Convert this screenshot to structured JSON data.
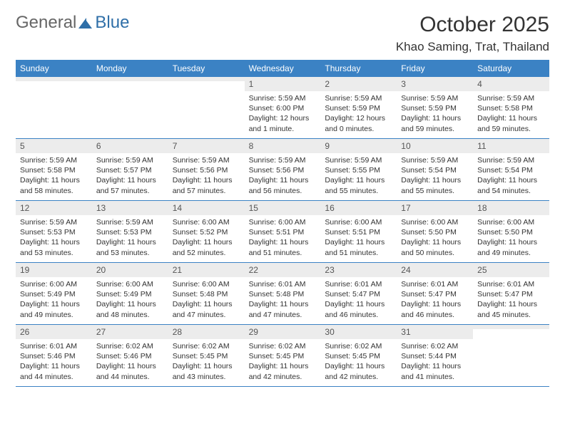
{
  "logo": {
    "general": "General",
    "blue": "Blue"
  },
  "title": "October 2025",
  "location": "Khao Saming, Trat, Thailand",
  "day_names": [
    "Sunday",
    "Monday",
    "Tuesday",
    "Wednesday",
    "Thursday",
    "Friday",
    "Saturday"
  ],
  "colors": {
    "header_bg": "#3b82c4",
    "header_text": "#ffffff",
    "daynum_bg": "#ececec",
    "border": "#3b82c4",
    "logo_blue": "#2f6fa8",
    "logo_gray": "#666666"
  },
  "grid": [
    [
      {
        "n": "",
        "sr": "",
        "ss": "",
        "dl": ""
      },
      {
        "n": "",
        "sr": "",
        "ss": "",
        "dl": ""
      },
      {
        "n": "",
        "sr": "",
        "ss": "",
        "dl": ""
      },
      {
        "n": "1",
        "sr": "Sunrise: 5:59 AM",
        "ss": "Sunset: 6:00 PM",
        "dl": "Daylight: 12 hours and 1 minute."
      },
      {
        "n": "2",
        "sr": "Sunrise: 5:59 AM",
        "ss": "Sunset: 5:59 PM",
        "dl": "Daylight: 12 hours and 0 minutes."
      },
      {
        "n": "3",
        "sr": "Sunrise: 5:59 AM",
        "ss": "Sunset: 5:59 PM",
        "dl": "Daylight: 11 hours and 59 minutes."
      },
      {
        "n": "4",
        "sr": "Sunrise: 5:59 AM",
        "ss": "Sunset: 5:58 PM",
        "dl": "Daylight: 11 hours and 59 minutes."
      }
    ],
    [
      {
        "n": "5",
        "sr": "Sunrise: 5:59 AM",
        "ss": "Sunset: 5:58 PM",
        "dl": "Daylight: 11 hours and 58 minutes."
      },
      {
        "n": "6",
        "sr": "Sunrise: 5:59 AM",
        "ss": "Sunset: 5:57 PM",
        "dl": "Daylight: 11 hours and 57 minutes."
      },
      {
        "n": "7",
        "sr": "Sunrise: 5:59 AM",
        "ss": "Sunset: 5:56 PM",
        "dl": "Daylight: 11 hours and 57 minutes."
      },
      {
        "n": "8",
        "sr": "Sunrise: 5:59 AM",
        "ss": "Sunset: 5:56 PM",
        "dl": "Daylight: 11 hours and 56 minutes."
      },
      {
        "n": "9",
        "sr": "Sunrise: 5:59 AM",
        "ss": "Sunset: 5:55 PM",
        "dl": "Daylight: 11 hours and 55 minutes."
      },
      {
        "n": "10",
        "sr": "Sunrise: 5:59 AM",
        "ss": "Sunset: 5:54 PM",
        "dl": "Daylight: 11 hours and 55 minutes."
      },
      {
        "n": "11",
        "sr": "Sunrise: 5:59 AM",
        "ss": "Sunset: 5:54 PM",
        "dl": "Daylight: 11 hours and 54 minutes."
      }
    ],
    [
      {
        "n": "12",
        "sr": "Sunrise: 5:59 AM",
        "ss": "Sunset: 5:53 PM",
        "dl": "Daylight: 11 hours and 53 minutes."
      },
      {
        "n": "13",
        "sr": "Sunrise: 5:59 AM",
        "ss": "Sunset: 5:53 PM",
        "dl": "Daylight: 11 hours and 53 minutes."
      },
      {
        "n": "14",
        "sr": "Sunrise: 6:00 AM",
        "ss": "Sunset: 5:52 PM",
        "dl": "Daylight: 11 hours and 52 minutes."
      },
      {
        "n": "15",
        "sr": "Sunrise: 6:00 AM",
        "ss": "Sunset: 5:51 PM",
        "dl": "Daylight: 11 hours and 51 minutes."
      },
      {
        "n": "16",
        "sr": "Sunrise: 6:00 AM",
        "ss": "Sunset: 5:51 PM",
        "dl": "Daylight: 11 hours and 51 minutes."
      },
      {
        "n": "17",
        "sr": "Sunrise: 6:00 AM",
        "ss": "Sunset: 5:50 PM",
        "dl": "Daylight: 11 hours and 50 minutes."
      },
      {
        "n": "18",
        "sr": "Sunrise: 6:00 AM",
        "ss": "Sunset: 5:50 PM",
        "dl": "Daylight: 11 hours and 49 minutes."
      }
    ],
    [
      {
        "n": "19",
        "sr": "Sunrise: 6:00 AM",
        "ss": "Sunset: 5:49 PM",
        "dl": "Daylight: 11 hours and 49 minutes."
      },
      {
        "n": "20",
        "sr": "Sunrise: 6:00 AM",
        "ss": "Sunset: 5:49 PM",
        "dl": "Daylight: 11 hours and 48 minutes."
      },
      {
        "n": "21",
        "sr": "Sunrise: 6:00 AM",
        "ss": "Sunset: 5:48 PM",
        "dl": "Daylight: 11 hours and 47 minutes."
      },
      {
        "n": "22",
        "sr": "Sunrise: 6:01 AM",
        "ss": "Sunset: 5:48 PM",
        "dl": "Daylight: 11 hours and 47 minutes."
      },
      {
        "n": "23",
        "sr": "Sunrise: 6:01 AM",
        "ss": "Sunset: 5:47 PM",
        "dl": "Daylight: 11 hours and 46 minutes."
      },
      {
        "n": "24",
        "sr": "Sunrise: 6:01 AM",
        "ss": "Sunset: 5:47 PM",
        "dl": "Daylight: 11 hours and 46 minutes."
      },
      {
        "n": "25",
        "sr": "Sunrise: 6:01 AM",
        "ss": "Sunset: 5:47 PM",
        "dl": "Daylight: 11 hours and 45 minutes."
      }
    ],
    [
      {
        "n": "26",
        "sr": "Sunrise: 6:01 AM",
        "ss": "Sunset: 5:46 PM",
        "dl": "Daylight: 11 hours and 44 minutes."
      },
      {
        "n": "27",
        "sr": "Sunrise: 6:02 AM",
        "ss": "Sunset: 5:46 PM",
        "dl": "Daylight: 11 hours and 44 minutes."
      },
      {
        "n": "28",
        "sr": "Sunrise: 6:02 AM",
        "ss": "Sunset: 5:45 PM",
        "dl": "Daylight: 11 hours and 43 minutes."
      },
      {
        "n": "29",
        "sr": "Sunrise: 6:02 AM",
        "ss": "Sunset: 5:45 PM",
        "dl": "Daylight: 11 hours and 42 minutes."
      },
      {
        "n": "30",
        "sr": "Sunrise: 6:02 AM",
        "ss": "Sunset: 5:45 PM",
        "dl": "Daylight: 11 hours and 42 minutes."
      },
      {
        "n": "31",
        "sr": "Sunrise: 6:02 AM",
        "ss": "Sunset: 5:44 PM",
        "dl": "Daylight: 11 hours and 41 minutes."
      },
      {
        "n": "",
        "sr": "",
        "ss": "",
        "dl": ""
      }
    ]
  ]
}
